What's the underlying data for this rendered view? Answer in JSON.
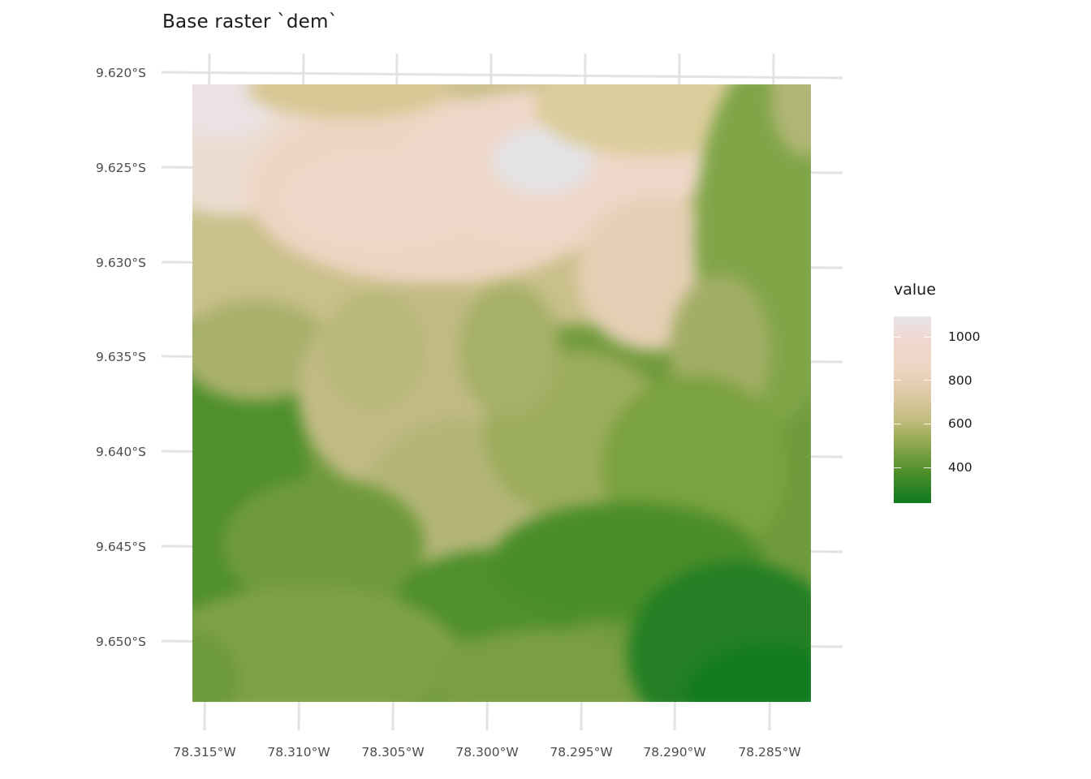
{
  "title": "Base raster `dem`",
  "y_axis": {
    "ticks": [
      "9.620°S",
      "9.625°S",
      "9.630°S",
      "9.635°S",
      "9.640°S",
      "9.645°S",
      "9.650°S"
    ]
  },
  "x_axis": {
    "ticks": [
      "78.315°W",
      "78.310°W",
      "78.305°W",
      "78.300°W",
      "78.295°W",
      "78.290°W",
      "78.285°W"
    ]
  },
  "legend": {
    "title": "value",
    "labels": [
      "1000",
      "800",
      "600",
      "400"
    ],
    "range": [
      250,
      1110
    ],
    "colors": [
      "#0f7a1e",
      "#4b8e2a",
      "#8fa84e",
      "#c4bd80",
      "#dac8a0",
      "#efd5c4",
      "#e8e5ea"
    ]
  },
  "raster": {
    "description_colors": {
      "low": "#0f7a1e",
      "mid": "#8fa84e",
      "high": "#efd5c4",
      "peak": "#e8e5ea"
    }
  }
}
